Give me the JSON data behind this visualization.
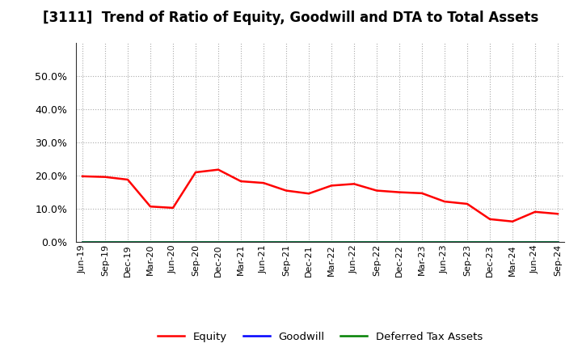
{
  "title": "[3111]  Trend of Ratio of Equity, Goodwill and DTA to Total Assets",
  "x_labels": [
    "Jun-19",
    "Sep-19",
    "Dec-19",
    "Mar-20",
    "Jun-20",
    "Sep-20",
    "Dec-20",
    "Mar-21",
    "Jun-21",
    "Sep-21",
    "Dec-21",
    "Mar-22",
    "Jun-22",
    "Sep-22",
    "Dec-22",
    "Mar-23",
    "Jun-23",
    "Sep-23",
    "Dec-23",
    "Mar-24",
    "Jun-24",
    "Sep-24"
  ],
  "equity": [
    0.198,
    0.196,
    0.188,
    0.107,
    0.103,
    0.21,
    0.218,
    0.183,
    0.178,
    0.155,
    0.146,
    0.17,
    0.175,
    0.155,
    0.15,
    0.147,
    0.122,
    0.115,
    0.069,
    0.062,
    0.091,
    0.085
  ],
  "goodwill": [
    0.0,
    0.0,
    0.0,
    0.0,
    0.0,
    0.0,
    0.0,
    0.0,
    0.0,
    0.0,
    0.0,
    0.0,
    0.0,
    0.0,
    0.0,
    0.0,
    0.0,
    0.0,
    0.0,
    0.0,
    0.0,
    0.0
  ],
  "dta": [
    0.0,
    0.0,
    0.0,
    0.0,
    0.0,
    0.0,
    0.0,
    0.0,
    0.0,
    0.0,
    0.0,
    0.0,
    0.0,
    0.0,
    0.0,
    0.0,
    0.0,
    0.0,
    0.0,
    0.0,
    0.0,
    0.0
  ],
  "equity_color": "#ff0000",
  "goodwill_color": "#0000ff",
  "dta_color": "#008000",
  "ylim": [
    0.0,
    0.6
  ],
  "yticks": [
    0.0,
    0.1,
    0.2,
    0.3,
    0.4,
    0.5
  ],
  "background_color": "#ffffff",
  "plot_bg_color": "#ffffff",
  "grid_color": "#aaaaaa",
  "title_fontsize": 12,
  "legend_labels": [
    "Equity",
    "Goodwill",
    "Deferred Tax Assets"
  ]
}
